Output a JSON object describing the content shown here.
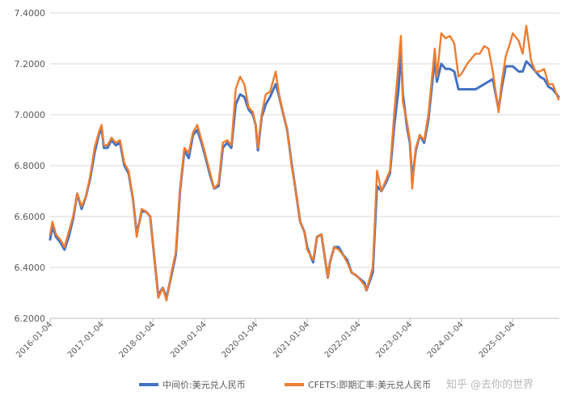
{
  "chart_data": {
    "type": "line",
    "title": "",
    "xlabel": "",
    "ylabel": "",
    "ylim": [
      6.2,
      7.4
    ],
    "y_ticks": [
      "6.2000",
      "6.4000",
      "6.6000",
      "6.8000",
      "7.0000",
      "7.2000",
      "7.4000"
    ],
    "x_ticks": [
      "2016-01-04",
      "2017-01-04",
      "2018-01-04",
      "2019-01-04",
      "2020-01-04",
      "2021-01-04",
      "2022-01-04",
      "2023-01-04",
      "2024-01-04",
      "2025-01-04"
    ],
    "grid": "horizontal",
    "legend_position": "bottom",
    "series": [
      {
        "name": "中间价:美元兑人民币",
        "color": "#4472C4",
        "points": [
          [
            "2016-01-04",
            6.51
          ],
          [
            "2016-01-20",
            6.56
          ],
          [
            "2016-02-15",
            6.52
          ],
          [
            "2016-03-15",
            6.5
          ],
          [
            "2016-04-15",
            6.47
          ],
          [
            "2016-05-15",
            6.52
          ],
          [
            "2016-06-15",
            6.59
          ],
          [
            "2016-07-15",
            6.69
          ],
          [
            "2016-08-15",
            6.63
          ],
          [
            "2016-09-15",
            6.68
          ],
          [
            "2016-10-15",
            6.75
          ],
          [
            "2016-11-15",
            6.85
          ],
          [
            "2016-12-15",
            6.92
          ],
          [
            "2017-01-04",
            6.95
          ],
          [
            "2017-01-20",
            6.87
          ],
          [
            "2017-02-15",
            6.87
          ],
          [
            "2017-03-15",
            6.9
          ],
          [
            "2017-04-15",
            6.88
          ],
          [
            "2017-05-15",
            6.89
          ],
          [
            "2017-06-15",
            6.8
          ],
          [
            "2017-07-15",
            6.77
          ],
          [
            "2017-08-15",
            6.67
          ],
          [
            "2017-09-10",
            6.53
          ],
          [
            "2017-10-15",
            6.62
          ],
          [
            "2017-11-15",
            6.62
          ],
          [
            "2017-12-15",
            6.6
          ],
          [
            "2018-01-04",
            6.49
          ],
          [
            "2018-02-10",
            6.29
          ],
          [
            "2018-03-15",
            6.32
          ],
          [
            "2018-04-10",
            6.28
          ],
          [
            "2018-05-15",
            6.37
          ],
          [
            "2018-06-15",
            6.45
          ],
          [
            "2018-07-15",
            6.7
          ],
          [
            "2018-08-15",
            6.86
          ],
          [
            "2018-09-15",
            6.83
          ],
          [
            "2018-10-15",
            6.92
          ],
          [
            "2018-11-15",
            6.94
          ],
          [
            "2018-12-15",
            6.89
          ],
          [
            "2019-01-04",
            6.85
          ],
          [
            "2019-02-15",
            6.76
          ],
          [
            "2019-03-15",
            6.71
          ],
          [
            "2019-04-15",
            6.72
          ],
          [
            "2019-05-15",
            6.87
          ],
          [
            "2019-06-15",
            6.89
          ],
          [
            "2019-07-15",
            6.87
          ],
          [
            "2019-08-15",
            7.04
          ],
          [
            "2019-09-15",
            7.08
          ],
          [
            "2019-10-15",
            7.07
          ],
          [
            "2019-11-15",
            7.02
          ],
          [
            "2019-12-15",
            7.0
          ],
          [
            "2020-01-04",
            6.96
          ],
          [
            "2020-01-20",
            6.86
          ],
          [
            "2020-02-15",
            6.99
          ],
          [
            "2020-03-15",
            7.04
          ],
          [
            "2020-04-15",
            7.07
          ],
          [
            "2020-05-25",
            7.12
          ],
          [
            "2020-06-15",
            7.08
          ],
          [
            "2020-07-15",
            7.01
          ],
          [
            "2020-08-15",
            6.94
          ],
          [
            "2020-09-15",
            6.81
          ],
          [
            "2020-10-15",
            6.7
          ],
          [
            "2020-11-15",
            6.58
          ],
          [
            "2020-12-15",
            6.54
          ],
          [
            "2021-01-04",
            6.48
          ],
          [
            "2021-02-15",
            6.42
          ],
          [
            "2021-03-15",
            6.52
          ],
          [
            "2021-04-15",
            6.53
          ],
          [
            "2021-05-31",
            6.36
          ],
          [
            "2021-06-15",
            6.42
          ],
          [
            "2021-07-15",
            6.48
          ],
          [
            "2021-08-15",
            6.48
          ],
          [
            "2021-09-15",
            6.45
          ],
          [
            "2021-10-15",
            6.43
          ],
          [
            "2021-11-15",
            6.38
          ],
          [
            "2021-12-15",
            6.37
          ],
          [
            "2022-01-04",
            6.36
          ],
          [
            "2022-02-15",
            6.34
          ],
          [
            "2022-03-01",
            6.31
          ],
          [
            "2022-04-15",
            6.38
          ],
          [
            "2022-05-15",
            6.72
          ],
          [
            "2022-06-15",
            6.7
          ],
          [
            "2022-07-15",
            6.73
          ],
          [
            "2022-08-15",
            6.77
          ],
          [
            "2022-09-15",
            6.96
          ],
          [
            "2022-10-15",
            7.1
          ],
          [
            "2022-11-01",
            7.25
          ],
          [
            "2022-11-15",
            7.08
          ],
          [
            "2022-12-15",
            6.95
          ],
          [
            "2023-01-04",
            6.89
          ],
          [
            "2023-01-20",
            6.74
          ],
          [
            "2023-02-15",
            6.86
          ],
          [
            "2023-03-15",
            6.92
          ],
          [
            "2023-04-15",
            6.89
          ],
          [
            "2023-05-15",
            6.98
          ],
          [
            "2023-06-30",
            7.22
          ],
          [
            "2023-07-15",
            7.13
          ],
          [
            "2023-08-15",
            7.2
          ],
          [
            "2023-09-15",
            7.18
          ],
          [
            "2023-10-15",
            7.18
          ],
          [
            "2023-11-15",
            7.17
          ],
          [
            "2023-12-15",
            7.1
          ],
          [
            "2024-01-04",
            7.1
          ],
          [
            "2024-02-15",
            7.1
          ],
          [
            "2024-03-15",
            7.1
          ],
          [
            "2024-04-15",
            7.1
          ],
          [
            "2024-05-15",
            7.11
          ],
          [
            "2024-06-15",
            7.12
          ],
          [
            "2024-07-15",
            7.13
          ],
          [
            "2024-08-15",
            7.14
          ],
          [
            "2024-09-25",
            7.02
          ],
          [
            "2024-10-15",
            7.1
          ],
          [
            "2024-11-15",
            7.19
          ],
          [
            "2024-12-15",
            7.19
          ],
          [
            "2025-01-04",
            7.19
          ],
          [
            "2025-02-15",
            7.17
          ],
          [
            "2025-03-15",
            7.17
          ],
          [
            "2025-04-10",
            7.21
          ],
          [
            "2025-05-15",
            7.19
          ],
          [
            "2025-06-15",
            7.17
          ],
          [
            "2025-07-15",
            7.15
          ],
          [
            "2025-08-15",
            7.14
          ],
          [
            "2025-09-15",
            7.11
          ],
          [
            "2025-10-15",
            7.1
          ],
          [
            "2025-11-25",
            7.07
          ]
        ]
      },
      {
        "name": "CFETS:即期汇率:美元兑人民币",
        "color": "#ED7D31",
        "points": [
          [
            "2016-01-04",
            6.53
          ],
          [
            "2016-01-20",
            6.58
          ],
          [
            "2016-02-15",
            6.53
          ],
          [
            "2016-03-15",
            6.51
          ],
          [
            "2016-04-15",
            6.48
          ],
          [
            "2016-05-15",
            6.54
          ],
          [
            "2016-06-15",
            6.6
          ],
          [
            "2016-07-15",
            6.69
          ],
          [
            "2016-08-15",
            6.64
          ],
          [
            "2016-09-15",
            6.68
          ],
          [
            "2016-10-15",
            6.76
          ],
          [
            "2016-11-15",
            6.87
          ],
          [
            "2016-12-15",
            6.93
          ],
          [
            "2017-01-04",
            6.96
          ],
          [
            "2017-01-20",
            6.88
          ],
          [
            "2017-02-15",
            6.88
          ],
          [
            "2017-03-15",
            6.91
          ],
          [
            "2017-04-15",
            6.89
          ],
          [
            "2017-05-15",
            6.9
          ],
          [
            "2017-06-15",
            6.81
          ],
          [
            "2017-07-15",
            6.78
          ],
          [
            "2017-08-15",
            6.67
          ],
          [
            "2017-09-10",
            6.52
          ],
          [
            "2017-10-15",
            6.63
          ],
          [
            "2017-11-15",
            6.62
          ],
          [
            "2017-12-15",
            6.6
          ],
          [
            "2018-01-04",
            6.49
          ],
          [
            "2018-02-10",
            6.28
          ],
          [
            "2018-03-15",
            6.32
          ],
          [
            "2018-04-10",
            6.27
          ],
          [
            "2018-05-15",
            6.38
          ],
          [
            "2018-06-15",
            6.46
          ],
          [
            "2018-07-15",
            6.71
          ],
          [
            "2018-08-15",
            6.87
          ],
          [
            "2018-09-15",
            6.85
          ],
          [
            "2018-10-15",
            6.93
          ],
          [
            "2018-11-15",
            6.96
          ],
          [
            "2018-12-15",
            6.9
          ],
          [
            "2019-01-04",
            6.86
          ],
          [
            "2019-02-15",
            6.77
          ],
          [
            "2019-03-15",
            6.71
          ],
          [
            "2019-04-15",
            6.73
          ],
          [
            "2019-05-15",
            6.89
          ],
          [
            "2019-06-15",
            6.9
          ],
          [
            "2019-07-15",
            6.88
          ],
          [
            "2019-08-15",
            7.1
          ],
          [
            "2019-09-15",
            7.15
          ],
          [
            "2019-10-15",
            7.12
          ],
          [
            "2019-11-15",
            7.03
          ],
          [
            "2019-12-15",
            7.01
          ],
          [
            "2020-01-04",
            6.96
          ],
          [
            "2020-01-20",
            6.87
          ],
          [
            "2020-02-15",
            7.0
          ],
          [
            "2020-03-15",
            7.08
          ],
          [
            "2020-04-15",
            7.09
          ],
          [
            "2020-05-25",
            7.17
          ],
          [
            "2020-06-15",
            7.09
          ],
          [
            "2020-07-15",
            7.01
          ],
          [
            "2020-08-15",
            6.94
          ],
          [
            "2020-09-15",
            6.8
          ],
          [
            "2020-10-15",
            6.7
          ],
          [
            "2020-11-15",
            6.58
          ],
          [
            "2020-12-15",
            6.54
          ],
          [
            "2021-01-04",
            6.47
          ],
          [
            "2021-02-15",
            6.43
          ],
          [
            "2021-03-15",
            6.52
          ],
          [
            "2021-04-15",
            6.53
          ],
          [
            "2021-05-31",
            6.36
          ],
          [
            "2021-06-15",
            6.42
          ],
          [
            "2021-07-15",
            6.48
          ],
          [
            "2021-08-15",
            6.47
          ],
          [
            "2021-09-15",
            6.45
          ],
          [
            "2021-10-15",
            6.42
          ],
          [
            "2021-11-15",
            6.38
          ],
          [
            "2021-12-15",
            6.37
          ],
          [
            "2022-01-04",
            6.36
          ],
          [
            "2022-02-15",
            6.33
          ],
          [
            "2022-03-01",
            6.31
          ],
          [
            "2022-04-15",
            6.4
          ],
          [
            "2022-05-15",
            6.78
          ],
          [
            "2022-06-15",
            6.7
          ],
          [
            "2022-07-15",
            6.74
          ],
          [
            "2022-08-15",
            6.78
          ],
          [
            "2022-09-15",
            7.01
          ],
          [
            "2022-10-15",
            7.2
          ],
          [
            "2022-11-01",
            7.31
          ],
          [
            "2022-11-15",
            7.05
          ],
          [
            "2022-12-15",
            6.97
          ],
          [
            "2023-01-04",
            6.9
          ],
          [
            "2023-01-20",
            6.71
          ],
          [
            "2023-02-15",
            6.87
          ],
          [
            "2023-03-15",
            6.92
          ],
          [
            "2023-04-15",
            6.9
          ],
          [
            "2023-05-15",
            7.0
          ],
          [
            "2023-06-30",
            7.26
          ],
          [
            "2023-07-15",
            7.15
          ],
          [
            "2023-08-15",
            7.32
          ],
          [
            "2023-09-15",
            7.3
          ],
          [
            "2023-10-15",
            7.31
          ],
          [
            "2023-11-15",
            7.28
          ],
          [
            "2023-12-15",
            7.15
          ],
          [
            "2024-01-04",
            7.16
          ],
          [
            "2024-02-15",
            7.2
          ],
          [
            "2024-03-15",
            7.22
          ],
          [
            "2024-04-15",
            7.24
          ],
          [
            "2024-05-15",
            7.24
          ],
          [
            "2024-06-15",
            7.27
          ],
          [
            "2024-07-15",
            7.26
          ],
          [
            "2024-08-15",
            7.17
          ],
          [
            "2024-09-25",
            7.01
          ],
          [
            "2024-10-15",
            7.12
          ],
          [
            "2024-11-15",
            7.23
          ],
          [
            "2024-12-15",
            7.28
          ],
          [
            "2025-01-04",
            7.32
          ],
          [
            "2025-02-15",
            7.29
          ],
          [
            "2025-03-15",
            7.24
          ],
          [
            "2025-04-10",
            7.35
          ],
          [
            "2025-05-15",
            7.21
          ],
          [
            "2025-06-15",
            7.17
          ],
          [
            "2025-07-15",
            7.17
          ],
          [
            "2025-08-15",
            7.18
          ],
          [
            "2025-09-15",
            7.12
          ],
          [
            "2025-10-15",
            7.12
          ],
          [
            "2025-11-25",
            7.06
          ]
        ]
      }
    ]
  },
  "watermark": "知乎 @去你的世界"
}
